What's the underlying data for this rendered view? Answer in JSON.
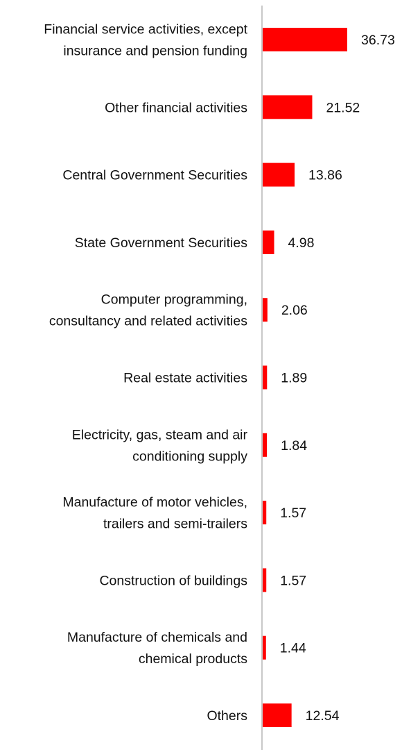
{
  "chart_data": {
    "type": "bar",
    "orientation": "horizontal",
    "title": "",
    "xlabel": "",
    "ylabel": "",
    "grid": false,
    "legend": "none",
    "xlim": [
      0,
      40
    ],
    "bar_color": "#ff0000",
    "axis_color": "#c8c8c8",
    "categories": [
      "Financial service activities, except insurance and pension funding",
      "Other financial activities",
      "Central Government Securities",
      "State Government Securities",
      "Computer programming, consultancy and related activities",
      "Real estate activities",
      "Electricity, gas, steam and air conditioning supply",
      "Manufacture of motor vehicles, trailers and semi-trailers",
      "Construction of buildings",
      "Manufacture of chemicals and chemical products",
      "Others"
    ],
    "category_lines": [
      [
        "Financial service activities, except",
        "insurance and pension funding"
      ],
      [
        "Other financial activities"
      ],
      [
        "Central Government Securities"
      ],
      [
        "State Government Securities"
      ],
      [
        "Computer programming,",
        "consultancy and related activities"
      ],
      [
        "Real estate activities"
      ],
      [
        "Electricity, gas, steam and air",
        "conditioning supply"
      ],
      [
        "Manufacture of motor vehicles,",
        "trailers and semi-trailers"
      ],
      [
        "Construction of buildings"
      ],
      [
        "Manufacture of chemicals and",
        "chemical products"
      ],
      [
        "Others"
      ]
    ],
    "values": [
      36.73,
      21.52,
      13.86,
      4.98,
      2.06,
      1.89,
      1.84,
      1.57,
      1.57,
      1.44,
      12.54
    ],
    "value_labels": [
      "36.73",
      "21.52",
      "13.86",
      "4.98",
      "2.06",
      "1.89",
      "1.84",
      "1.57",
      "1.57",
      "1.44",
      "12.54"
    ]
  }
}
